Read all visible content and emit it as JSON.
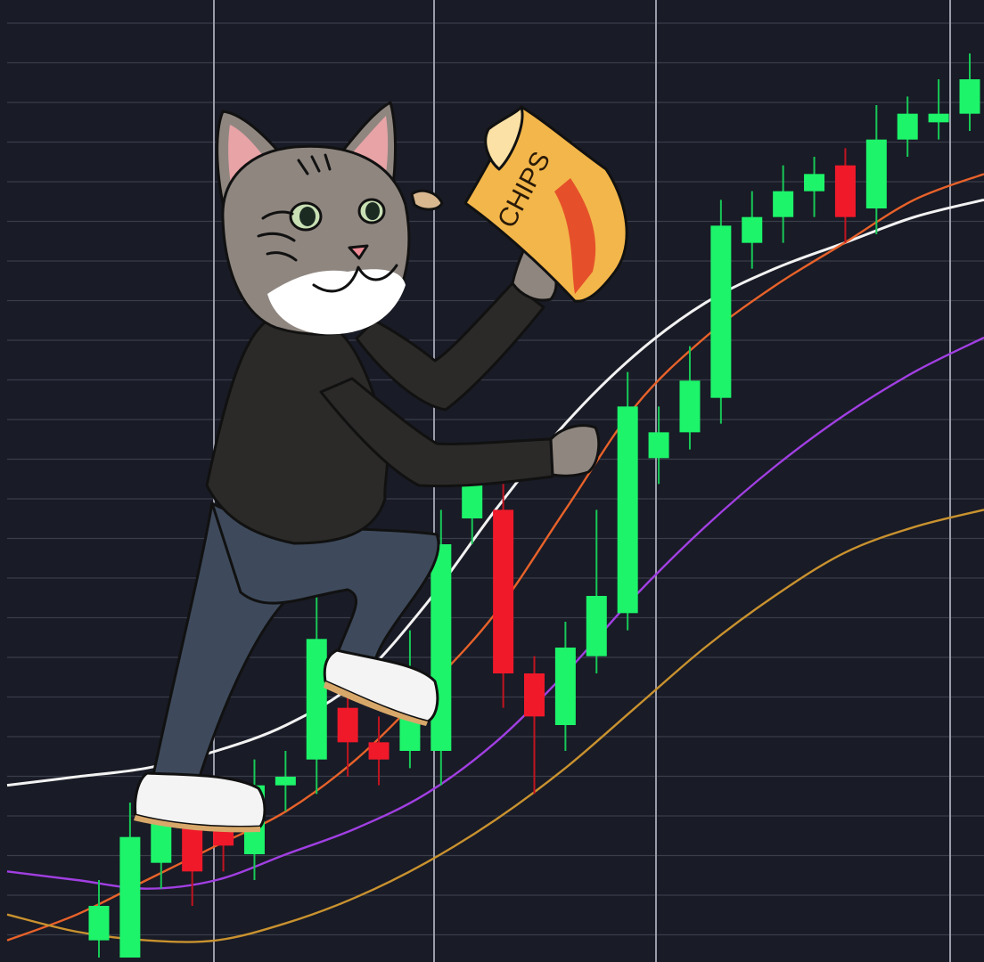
{
  "colors": {
    "background": "#191b26",
    "grid_h": "#3a3d4a",
    "grid_v": "#9a9caa",
    "bull": "#1df46a",
    "bear": "#f0192a",
    "wick_bull": "#17c957",
    "wick_bear": "#c21420",
    "ma_white": "#f2f2f2",
    "ma_orange": "#e8622a",
    "ma_purple": "#a13fe2",
    "ma_gold": "#c9922f",
    "fur": "#8f8680",
    "hoodie": "#2b2a28",
    "jeans": "#3e4a5c",
    "shoe": "#f4f4f4",
    "chips_bag": "#f3b64a",
    "chips_stripe": "#e5502a"
  },
  "chart_data": {
    "type": "candlestick",
    "trend": "up",
    "candles": [
      {
        "o": 0.02,
        "c": 0.06,
        "h": 0.09,
        "l": 0.0
      },
      {
        "o": 0.0,
        "c": 0.14,
        "h": 0.18,
        "l": 0.0
      },
      {
        "o": 0.11,
        "c": 0.17,
        "h": 0.21,
        "l": 0.08
      },
      {
        "o": 0.16,
        "c": 0.1,
        "h": 0.18,
        "l": 0.06
      },
      {
        "o": 0.16,
        "c": 0.13,
        "h": 0.18,
        "l": 0.1
      },
      {
        "o": 0.12,
        "c": 0.2,
        "h": 0.23,
        "l": 0.09
      },
      {
        "o": 0.2,
        "c": 0.21,
        "h": 0.24,
        "l": 0.17
      },
      {
        "o": 0.23,
        "c": 0.37,
        "h": 0.43,
        "l": 0.19
      },
      {
        "o": 0.29,
        "c": 0.25,
        "h": 0.34,
        "l": 0.21
      },
      {
        "o": 0.25,
        "c": 0.23,
        "h": 0.28,
        "l": 0.2
      },
      {
        "o": 0.24,
        "c": 0.3,
        "h": 0.38,
        "l": 0.22
      },
      {
        "o": 0.24,
        "c": 0.48,
        "h": 0.52,
        "l": 0.2
      },
      {
        "o": 0.51,
        "c": 0.55,
        "h": 0.59,
        "l": 0.48
      },
      {
        "o": 0.52,
        "c": 0.33,
        "h": 0.55,
        "l": 0.29
      },
      {
        "o": 0.33,
        "c": 0.28,
        "h": 0.35,
        "l": 0.19
      },
      {
        "o": 0.27,
        "c": 0.36,
        "h": 0.39,
        "l": 0.24
      },
      {
        "o": 0.35,
        "c": 0.42,
        "h": 0.52,
        "l": 0.33
      },
      {
        "o": 0.4,
        "c": 0.64,
        "h": 0.68,
        "l": 0.38
      },
      {
        "o": 0.58,
        "c": 0.61,
        "h": 0.64,
        "l": 0.55
      },
      {
        "o": 0.61,
        "c": 0.67,
        "h": 0.71,
        "l": 0.59
      },
      {
        "o": 0.65,
        "c": 0.85,
        "h": 0.88,
        "l": 0.62
      },
      {
        "o": 0.83,
        "c": 0.86,
        "h": 0.89,
        "l": 0.8
      },
      {
        "o": 0.86,
        "c": 0.89,
        "h": 0.92,
        "l": 0.83
      },
      {
        "o": 0.89,
        "c": 0.91,
        "h": 0.93,
        "l": 0.86
      },
      {
        "o": 0.92,
        "c": 0.86,
        "h": 0.94,
        "l": 0.83
      },
      {
        "o": 0.87,
        "c": 0.95,
        "h": 0.99,
        "l": 0.84
      },
      {
        "o": 0.95,
        "c": 0.98,
        "h": 1.0,
        "l": 0.93
      },
      {
        "o": 0.97,
        "c": 0.98,
        "h": 1.02,
        "l": 0.95
      },
      {
        "o": 0.98,
        "c": 1.02,
        "h": 1.05,
        "l": 0.96
      }
    ],
    "moving_averages": [
      {
        "color": "#f2f2f2",
        "values": [
          0.2,
          0.21,
          0.22,
          0.24,
          0.27,
          0.32,
          0.41,
          0.52,
          0.62,
          0.7,
          0.76,
          0.8,
          0.83,
          0.86,
          0.88
        ]
      },
      {
        "color": "#e8622a",
        "values": [
          0.02,
          0.05,
          0.09,
          0.13,
          0.17,
          0.23,
          0.31,
          0.4,
          0.52,
          0.64,
          0.72,
          0.78,
          0.83,
          0.88,
          0.91
        ]
      },
      {
        "color": "#a13fe2",
        "values": [
          0.1,
          0.09,
          0.08,
          0.09,
          0.12,
          0.15,
          0.19,
          0.25,
          0.33,
          0.42,
          0.5,
          0.57,
          0.63,
          0.68,
          0.72
        ]
      },
      {
        "color": "#c9922f",
        "values": [
          0.05,
          0.03,
          0.02,
          0.02,
          0.04,
          0.07,
          0.11,
          0.16,
          0.22,
          0.29,
          0.36,
          0.42,
          0.47,
          0.5,
          0.52
        ]
      }
    ]
  },
  "illustration": {
    "subject": "cat-character-climbing-chart",
    "bag_label": "CHIPS"
  }
}
